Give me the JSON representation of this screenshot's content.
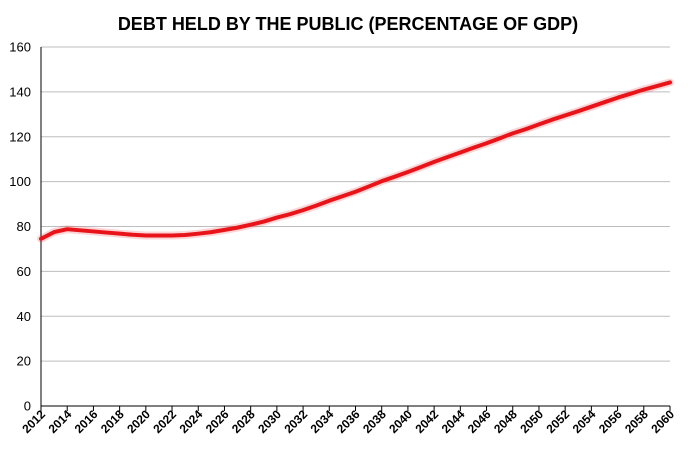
{
  "chart_data": {
    "type": "line",
    "title": "DEBT HELD BY THE PUBLIC (PERCENTAGE OF GDP)",
    "xlabel": "",
    "ylabel": "",
    "xlim": [
      2012,
      2060
    ],
    "ylim": [
      0,
      160
    ],
    "y_ticks": [
      0,
      20,
      40,
      60,
      80,
      100,
      120,
      140,
      160
    ],
    "x_ticks": [
      "2012",
      "2014",
      "2016",
      "2018",
      "2020",
      "2022",
      "2024",
      "2026",
      "2028",
      "2030",
      "2032",
      "2034",
      "2036",
      "2038",
      "2040",
      "2042",
      "2044",
      "2046",
      "2048",
      "2050",
      "2052",
      "2054",
      "2056",
      "2058",
      "2060"
    ],
    "grid": true,
    "legend": "none",
    "line_color": "#e8141a",
    "x": [
      2012,
      2013,
      2014,
      2015,
      2016,
      2017,
      2018,
      2019,
      2020,
      2021,
      2022,
      2023,
      2024,
      2025,
      2026,
      2027,
      2028,
      2029,
      2030,
      2031,
      2032,
      2033,
      2034,
      2035,
      2036,
      2037,
      2038,
      2039,
      2040,
      2041,
      2042,
      2043,
      2044,
      2045,
      2046,
      2047,
      2048,
      2049,
      2050,
      2051,
      2052,
      2053,
      2054,
      2055,
      2056,
      2057,
      2058,
      2059,
      2060
    ],
    "series": [
      {
        "values": [
          74.5,
          77.5,
          78.8,
          78.3,
          77.8,
          77.3,
          76.8,
          76.3,
          76.0,
          76.0,
          76.0,
          76.2,
          76.8,
          77.5,
          78.5,
          79.5,
          80.8,
          82.2,
          84.0,
          85.5,
          87.3,
          89.3,
          91.5,
          93.5,
          95.5,
          97.8,
          100.2,
          102.2,
          104.3,
          106.5,
          108.8,
          110.9,
          113.0,
          115.1,
          117.1,
          119.3,
          121.5,
          123.4,
          125.5,
          127.6,
          129.5,
          131.4,
          133.4,
          135.4,
          137.4,
          139.2,
          141.0,
          142.6,
          144.2
        ]
      }
    ]
  }
}
